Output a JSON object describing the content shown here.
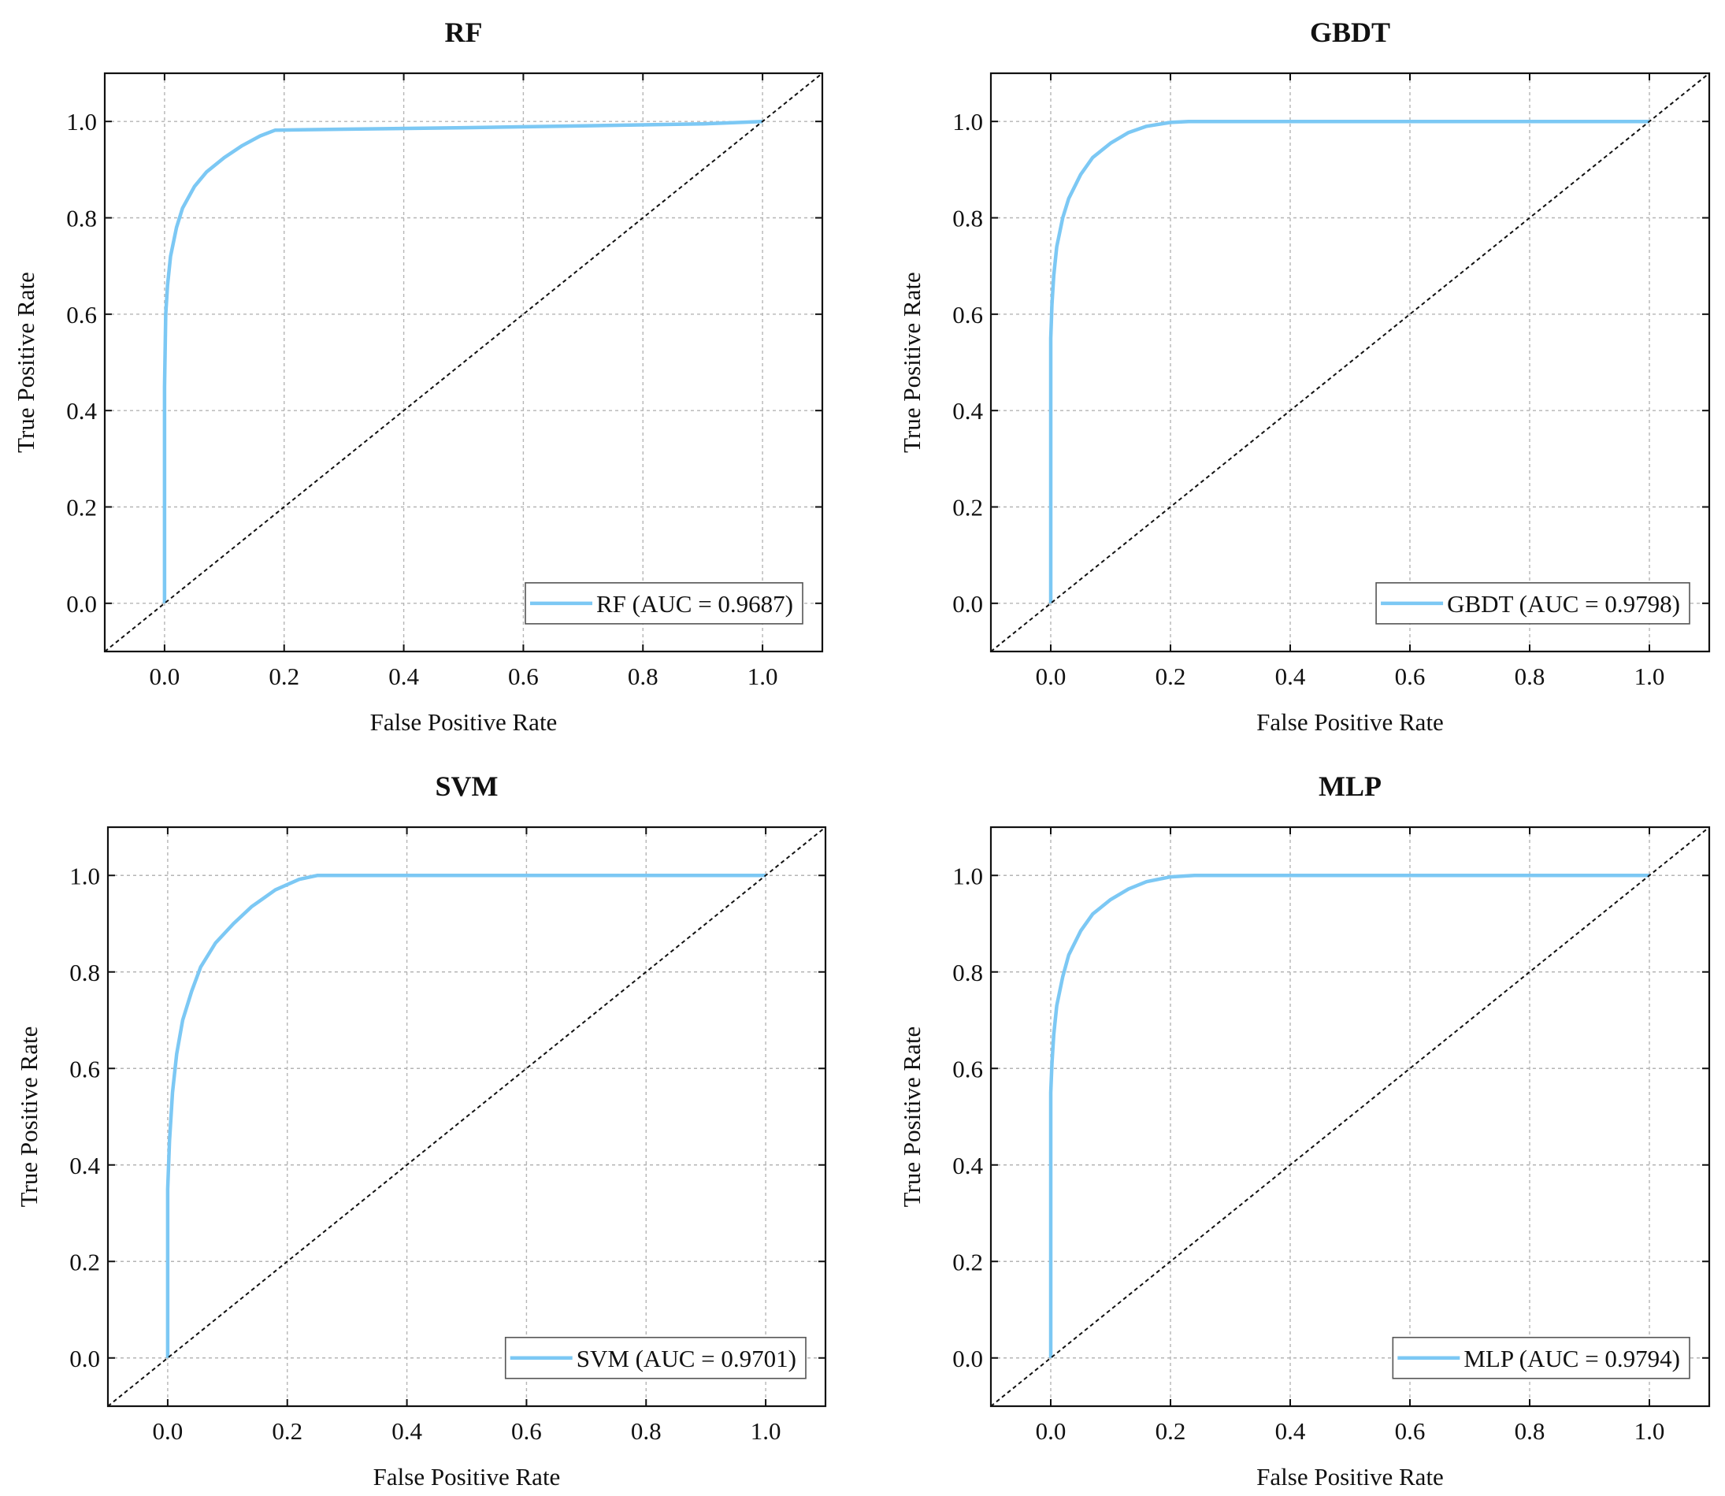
{
  "chart_data": [
    {
      "type": "line",
      "title": "RF",
      "xlabel": "False Positive Rate",
      "ylabel": "True Positive Rate",
      "xlim": [
        -0.1,
        1.1
      ],
      "ylim": [
        -0.1,
        1.1
      ],
      "xticks": [
        0.0,
        0.2,
        0.4,
        0.6,
        0.8,
        1.0
      ],
      "yticks": [
        0.0,
        0.2,
        0.4,
        0.6,
        0.8,
        1.0
      ],
      "xtick_labels": [
        "0.0",
        "0.2",
        "0.4",
        "0.6",
        "0.8",
        "1.0"
      ],
      "ytick_labels": [
        "0.0",
        "0.2",
        "0.4",
        "0.6",
        "0.8",
        "1.0"
      ],
      "grid": true,
      "legend_position": "bottom-right",
      "series": [
        {
          "name": "RF (AUC = 0.9687)",
          "color": "#7cc8f4",
          "x": [
            0.0,
            0.0,
            0.002,
            0.005,
            0.01,
            0.02,
            0.03,
            0.05,
            0.07,
            0.1,
            0.13,
            0.16,
            0.185,
            0.3,
            0.5,
            0.7,
            0.9,
            1.0
          ],
          "y": [
            0.0,
            0.45,
            0.6,
            0.66,
            0.72,
            0.78,
            0.82,
            0.865,
            0.895,
            0.925,
            0.95,
            0.97,
            0.982,
            0.984,
            0.987,
            0.991,
            0.995,
            1.0
          ]
        },
        {
          "name": "chance",
          "style": "dashed",
          "color": "#111111",
          "x": [
            -0.1,
            1.1
          ],
          "y": [
            -0.1,
            1.1
          ]
        }
      ]
    },
    {
      "type": "line",
      "title": "GBDT",
      "xlabel": "False Positive Rate",
      "ylabel": "True Positive Rate",
      "xlim": [
        -0.1,
        1.1
      ],
      "ylim": [
        -0.1,
        1.1
      ],
      "xticks": [
        0.0,
        0.2,
        0.4,
        0.6,
        0.8,
        1.0
      ],
      "yticks": [
        0.0,
        0.2,
        0.4,
        0.6,
        0.8,
        1.0
      ],
      "xtick_labels": [
        "0.0",
        "0.2",
        "0.4",
        "0.6",
        "0.8",
        "1.0"
      ],
      "ytick_labels": [
        "0.0",
        "0.2",
        "0.4",
        "0.6",
        "0.8",
        "1.0"
      ],
      "grid": true,
      "legend_position": "bottom-right",
      "series": [
        {
          "name": "GBDT (AUC = 0.9798)",
          "color": "#7cc8f4",
          "x": [
            0.0,
            0.0,
            0.002,
            0.005,
            0.01,
            0.02,
            0.03,
            0.05,
            0.07,
            0.1,
            0.13,
            0.16,
            0.2,
            0.23,
            0.4,
            0.6,
            0.8,
            1.0
          ],
          "y": [
            0.0,
            0.55,
            0.62,
            0.68,
            0.74,
            0.8,
            0.84,
            0.89,
            0.925,
            0.955,
            0.977,
            0.99,
            0.998,
            1.0,
            1.0,
            1.0,
            1.0,
            1.0
          ]
        },
        {
          "name": "chance",
          "style": "dashed",
          "color": "#111111",
          "x": [
            -0.1,
            1.1
          ],
          "y": [
            -0.1,
            1.1
          ]
        }
      ]
    },
    {
      "type": "line",
      "title": "SVM",
      "xlabel": "False Positive Rate",
      "ylabel": "True Positive Rate",
      "xlim": [
        -0.1,
        1.1
      ],
      "ylim": [
        -0.1,
        1.1
      ],
      "xticks": [
        0.0,
        0.2,
        0.4,
        0.6,
        0.8,
        1.0
      ],
      "yticks": [
        0.0,
        0.2,
        0.4,
        0.6,
        0.8,
        1.0
      ],
      "xtick_labels": [
        "0.0",
        "0.2",
        "0.4",
        "0.6",
        "0.8",
        "1.0"
      ],
      "ytick_labels": [
        "0.0",
        "0.2",
        "0.4",
        "0.6",
        "0.8",
        "1.0"
      ],
      "grid": true,
      "legend_position": "bottom-right",
      "series": [
        {
          "name": "SVM (AUC = 0.9701)",
          "color": "#7cc8f4",
          "x": [
            0.0,
            0.0,
            0.003,
            0.008,
            0.015,
            0.025,
            0.04,
            0.055,
            0.08,
            0.11,
            0.14,
            0.18,
            0.22,
            0.25,
            0.4,
            0.6,
            0.8,
            1.0
          ],
          "y": [
            0.0,
            0.35,
            0.45,
            0.55,
            0.63,
            0.7,
            0.76,
            0.81,
            0.86,
            0.9,
            0.935,
            0.97,
            0.992,
            1.0,
            1.0,
            1.0,
            1.0,
            1.0
          ]
        },
        {
          "name": "chance",
          "style": "dashed",
          "color": "#111111",
          "x": [
            -0.1,
            1.1
          ],
          "y": [
            -0.1,
            1.1
          ]
        }
      ]
    },
    {
      "type": "line",
      "title": "MLP",
      "xlabel": "False Positive Rate",
      "ylabel": "True Positive Rate",
      "xlim": [
        -0.1,
        1.1
      ],
      "ylim": [
        -0.1,
        1.1
      ],
      "xticks": [
        0.0,
        0.2,
        0.4,
        0.6,
        0.8,
        1.0
      ],
      "yticks": [
        0.0,
        0.2,
        0.4,
        0.6,
        0.8,
        1.0
      ],
      "xtick_labels": [
        "0.0",
        "0.2",
        "0.4",
        "0.6",
        "0.8",
        "1.0"
      ],
      "ytick_labels": [
        "0.0",
        "0.2",
        "0.4",
        "0.6",
        "0.8",
        "1.0"
      ],
      "grid": true,
      "legend_position": "bottom-right",
      "series": [
        {
          "name": "MLP (AUC = 0.9794)",
          "color": "#7cc8f4",
          "x": [
            0.0,
            0.0,
            0.002,
            0.005,
            0.01,
            0.02,
            0.03,
            0.05,
            0.07,
            0.1,
            0.13,
            0.16,
            0.2,
            0.24,
            0.4,
            0.6,
            0.8,
            1.0
          ],
          "y": [
            0.0,
            0.55,
            0.61,
            0.67,
            0.73,
            0.79,
            0.835,
            0.885,
            0.92,
            0.95,
            0.972,
            0.987,
            0.997,
            1.0,
            1.0,
            1.0,
            1.0,
            1.0
          ]
        },
        {
          "name": "chance",
          "style": "dashed",
          "color": "#111111",
          "x": [
            -0.1,
            1.1
          ],
          "y": [
            -0.1,
            1.1
          ]
        }
      ]
    }
  ]
}
